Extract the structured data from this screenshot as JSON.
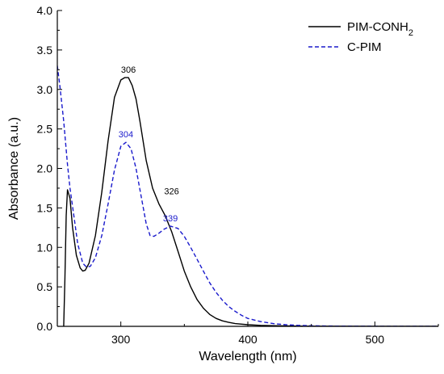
{
  "chart_data": {
    "type": "line",
    "title": "",
    "xlabel": "Wavelength (nm)",
    "ylabel": "Absorbance (a.u.)",
    "xlim": [
      250,
      550
    ],
    "ylim": [
      0,
      4.0
    ],
    "x_ticks": [
      300,
      400,
      500
    ],
    "x_tick_labels": [
      "300",
      "400",
      "500"
    ],
    "y_ticks": [
      0,
      0.5,
      1.0,
      1.5,
      2.0,
      2.5,
      3.0,
      3.5,
      4.0
    ],
    "y_tick_labels": [
      "0.0",
      "0.5",
      "1.0",
      "1.5",
      "2.0",
      "2.5",
      "3.0",
      "3.5",
      "4.0"
    ],
    "grid": false,
    "legend_position": "top-right",
    "series": [
      {
        "name": "PIM-CONH2",
        "legend_main": "PIM-CONH",
        "legend_sub": "2",
        "color": "#000000",
        "style": "solid",
        "x": [
          255,
          256,
          257,
          258,
          260,
          262,
          265,
          268,
          270,
          272,
          275,
          280,
          285,
          290,
          295,
          300,
          303,
          306,
          309,
          312,
          315,
          320,
          325,
          330,
          335,
          340,
          345,
          350,
          355,
          360,
          365,
          370,
          375,
          380,
          385,
          390,
          400,
          410,
          420,
          430,
          450,
          500,
          550
        ],
        "y": [
          0,
          0.6,
          1.4,
          1.73,
          1.62,
          1.25,
          0.9,
          0.74,
          0.7,
          0.71,
          0.8,
          1.15,
          1.7,
          2.35,
          2.9,
          3.12,
          3.15,
          3.15,
          3.05,
          2.88,
          2.6,
          2.1,
          1.75,
          1.55,
          1.4,
          1.2,
          0.95,
          0.7,
          0.5,
          0.34,
          0.23,
          0.15,
          0.1,
          0.07,
          0.05,
          0.035,
          0.02,
          0.012,
          0.008,
          0.005,
          0.002,
          0,
          0
        ]
      },
      {
        "name": "C-PIM",
        "color": "#1a1acc",
        "style": "dashed",
        "x": [
          250,
          252,
          255,
          258,
          260,
          263,
          266,
          270,
          273,
          276,
          280,
          285,
          290,
          295,
          300,
          304,
          308,
          312,
          316,
          320,
          323,
          326,
          330,
          334,
          339,
          345,
          350,
          355,
          360,
          365,
          370,
          375,
          380,
          385,
          390,
          395,
          400,
          410,
          420,
          430,
          440,
          450,
          470,
          500,
          550
        ],
        "y": [
          3.3,
          3.05,
          2.6,
          2.05,
          1.75,
          1.4,
          1.05,
          0.8,
          0.75,
          0.76,
          0.87,
          1.15,
          1.55,
          1.98,
          2.28,
          2.33,
          2.25,
          2.0,
          1.65,
          1.3,
          1.15,
          1.14,
          1.18,
          1.23,
          1.27,
          1.24,
          1.14,
          1.0,
          0.85,
          0.7,
          0.55,
          0.43,
          0.33,
          0.25,
          0.19,
          0.14,
          0.1,
          0.06,
          0.035,
          0.02,
          0.012,
          0.007,
          0.003,
          0.001,
          0
        ]
      }
    ],
    "annotations": [
      {
        "text": "306",
        "x": 306,
        "y": 3.15,
        "color": "#000000"
      },
      {
        "text": "304",
        "x": 304,
        "y": 2.33,
        "color": "#1a1acc"
      },
      {
        "text": "326",
        "x": 330,
        "y": 1.55,
        "color": "#000000"
      },
      {
        "text": "339",
        "x": 339,
        "y": 1.27,
        "color": "#1a1acc"
      }
    ]
  }
}
